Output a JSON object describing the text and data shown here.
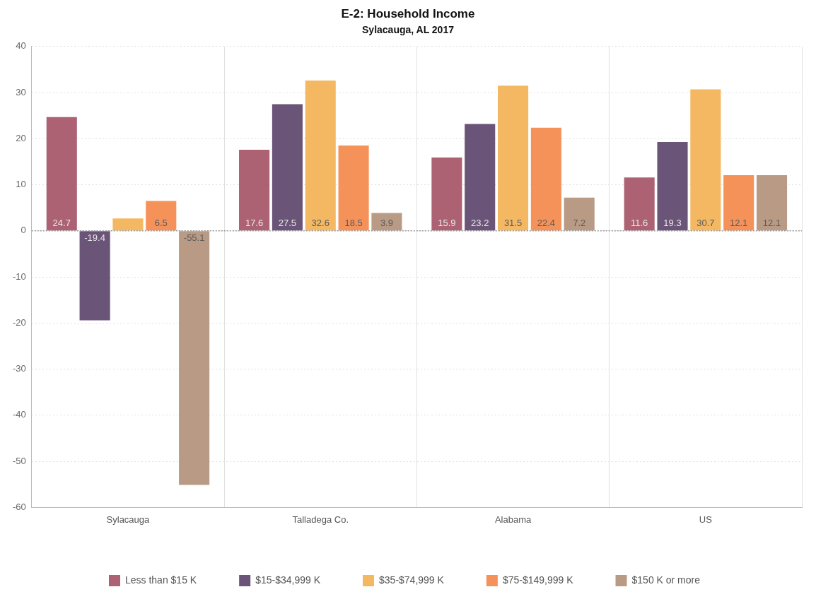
{
  "chart_data": {
    "type": "bar",
    "title": "E-2: Household Income",
    "subtitle": "Sylacauga, AL 2017",
    "categories": [
      "Sylacauga",
      "Talladega Co.",
      "Alabama",
      "US"
    ],
    "series": [
      {
        "name": "Less than $15 K",
        "color": "#ac6273",
        "values": [
          24.7,
          17.6,
          15.9,
          11.6
        ],
        "value_labels": [
          "24.7",
          "17.6",
          "15.9",
          "11.6"
        ]
      },
      {
        "name": "$15-$34,999 K",
        "color": "#6a5478",
        "values": [
          -19.4,
          27.5,
          23.2,
          19.3
        ],
        "value_labels": [
          "-19.4",
          "27.5",
          "23.2",
          "19.3"
        ]
      },
      {
        "name": "$35-$74,999 K",
        "color": "#f4b863",
        "values": [
          2.7,
          32.6,
          31.5,
          30.7
        ],
        "value_labels": [
          null,
          "32.6",
          "31.5",
          "30.7"
        ]
      },
      {
        "name": "$75-$149,999 K",
        "color": "#f5925a",
        "values": [
          6.5,
          18.5,
          22.4,
          12.1
        ],
        "value_labels": [
          "6.5",
          "18.5",
          "22.4",
          "12.1"
        ]
      },
      {
        "name": "$150 K or more",
        "color": "#b99b85",
        "values": [
          -55.1,
          3.9,
          7.2,
          12.1
        ],
        "value_labels": [
          "-55.1",
          "3.9",
          "7.2",
          "12.1"
        ]
      }
    ],
    "ylim": [
      -60,
      40
    ],
    "yticks": [
      -60,
      -50,
      -40,
      -30,
      -20,
      -10,
      0,
      10,
      20,
      30,
      40
    ],
    "grid": true,
    "legend": "bottom",
    "ref_lines": [
      {
        "axis": "y",
        "value": 0,
        "color": "#999999",
        "line_style": "dotted"
      }
    ]
  }
}
